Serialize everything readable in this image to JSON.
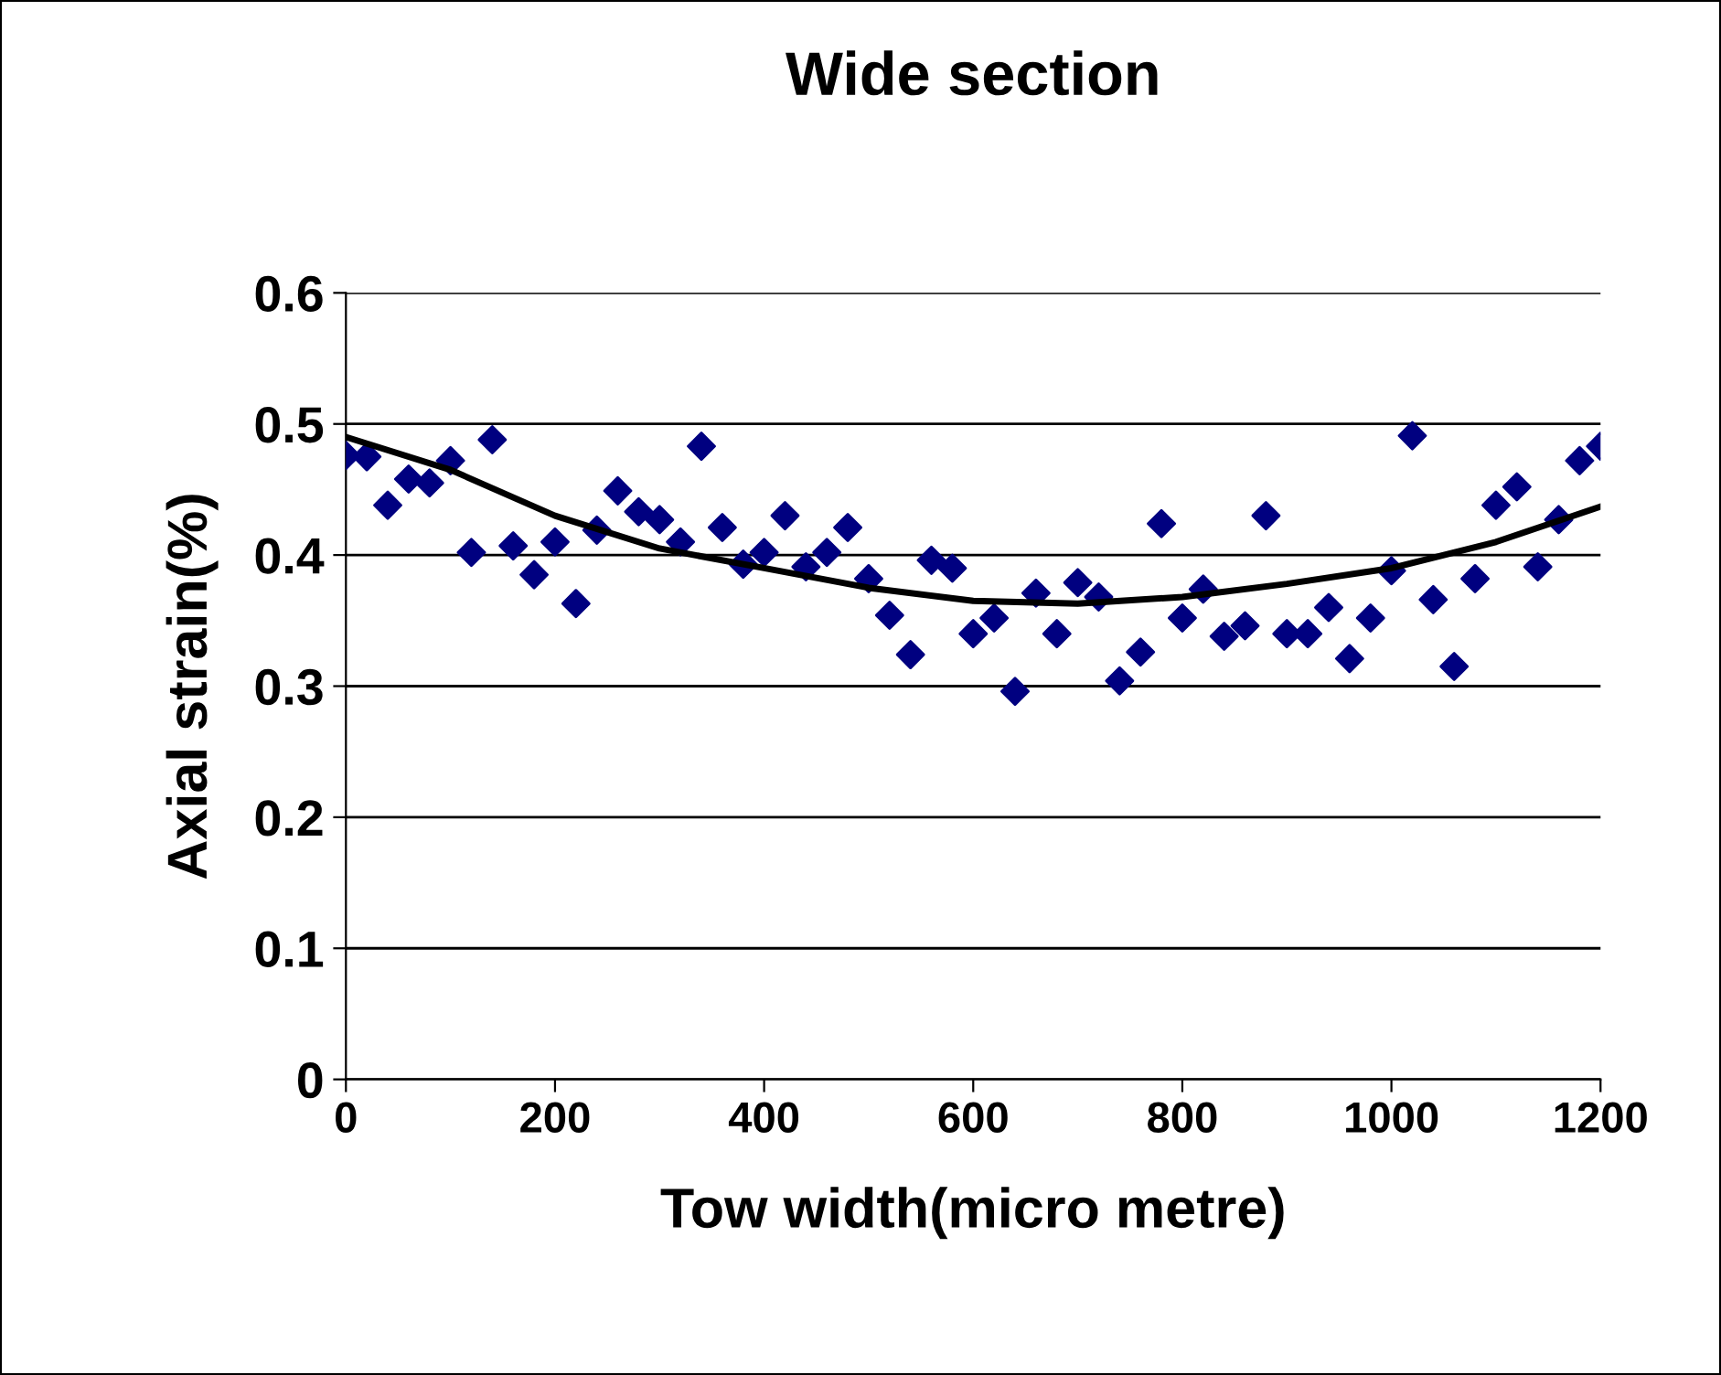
{
  "chart_data": {
    "type": "scatter",
    "title": "Wide section",
    "xlabel": "Tow width(micro metre)",
    "ylabel": "Axial strain(%)",
    "xlim": [
      0,
      1200
    ],
    "xticks": [
      0,
      200,
      400,
      600,
      800,
      1000,
      1200
    ],
    "ylim": [
      0,
      0.6
    ],
    "yticks": [
      0,
      0.1,
      0.2,
      0.3,
      0.4,
      0.5,
      0.6
    ],
    "grid": "y",
    "legend": false,
    "series": [
      {
        "marker": "diamond",
        "color": "#000080",
        "x": [
          0,
          20,
          40,
          60,
          80,
          100,
          120,
          140,
          160,
          180,
          200,
          220,
          240,
          260,
          280,
          300,
          320,
          340,
          360,
          380,
          400,
          420,
          440,
          460,
          480,
          500,
          520,
          540,
          560,
          580,
          600,
          620,
          640,
          660,
          680,
          700,
          720,
          740,
          760,
          780,
          800,
          820,
          840,
          860,
          880,
          900,
          920,
          940,
          960,
          980,
          1000,
          1020,
          1040,
          1060,
          1080,
          1100,
          1120,
          1140,
          1160,
          1180,
          1200
        ],
        "values": [
          0.476,
          0.475,
          0.438,
          0.458,
          0.455,
          0.472,
          0.402,
          0.488,
          0.407,
          0.385,
          0.41,
          0.363,
          0.419,
          0.449,
          0.433,
          0.427,
          0.41,
          0.483,
          0.421,
          0.393,
          0.402,
          0.43,
          0.391,
          0.402,
          0.421,
          0.382,
          0.354,
          0.324,
          0.396,
          0.39,
          0.34,
          0.352,
          0.296,
          0.371,
          0.34,
          0.379,
          0.368,
          0.304,
          0.326,
          0.424,
          0.352,
          0.374,
          0.338,
          0.346,
          0.43,
          0.34,
          0.34,
          0.36,
          0.321,
          0.352,
          0.388,
          0.491,
          0.366,
          0.315,
          0.382,
          0.438,
          0.452,
          0.391,
          0.427,
          0.472,
          0.483
        ]
      },
      {
        "type": "line",
        "marker": "none",
        "line_style": "solid",
        "color": "#000000",
        "x": [
          0,
          100,
          200,
          300,
          400,
          500,
          600,
          700,
          800,
          900,
          1000,
          1100,
          1200
        ],
        "values": [
          0.49,
          0.465,
          0.43,
          0.405,
          0.39,
          0.375,
          0.365,
          0.363,
          0.368,
          0.378,
          0.39,
          0.41,
          0.437
        ]
      }
    ]
  }
}
